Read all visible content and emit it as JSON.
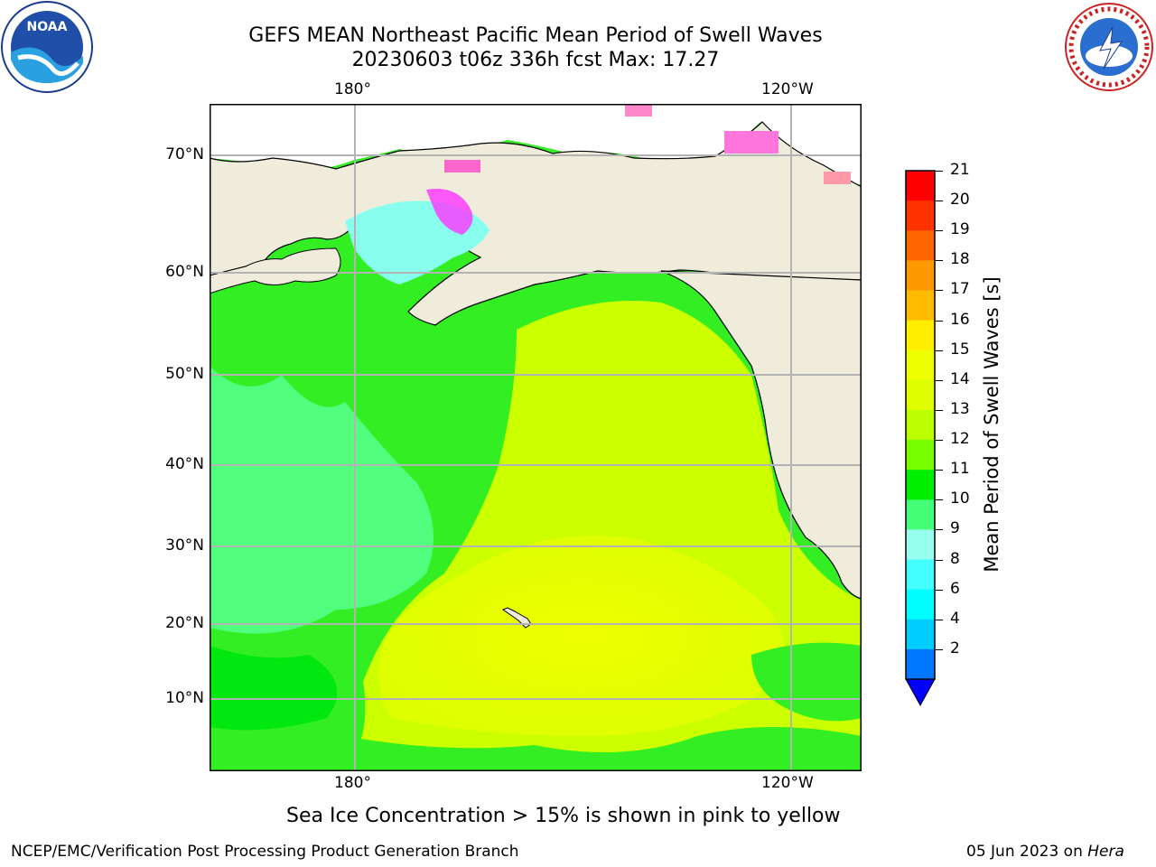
{
  "header": {
    "title_line1": "GEFS MEAN Northeast Pacific Mean Period of Swell Waves",
    "title_line2": "20230603 t06z 336h fcst   Max: 17.27"
  },
  "logos": {
    "left": "NOAA",
    "right": "NATIONAL WEATHER SERVICE"
  },
  "map": {
    "lon_labels": [
      "180°",
      "120°W"
    ],
    "lat_labels": [
      "70°N",
      "60°N",
      "50°N",
      "40°N",
      "30°N",
      "20°N",
      "10°N"
    ],
    "colors": {
      "land": "#efecdc",
      "coast": "#000000",
      "grid": "#b3b3b3"
    }
  },
  "colorbar": {
    "label": "Mean Period of Swell Waves [s]",
    "ticks": [
      "21",
      "20",
      "19",
      "18",
      "17",
      "16",
      "15",
      "14",
      "13",
      "12",
      "11",
      "10",
      "9",
      "8",
      "6",
      "4",
      "2"
    ],
    "colors": [
      "#ff0000",
      "#ff3300",
      "#ff6600",
      "#ff9900",
      "#ffbb00",
      "#ffee00",
      "#eeff00",
      "#ddff00",
      "#bbff00",
      "#77ff00",
      "#00ee00",
      "#44ff77",
      "#99ffee",
      "#44ffff",
      "#00ffff",
      "#00ccff",
      "#0077ff"
    ],
    "extend_color": "#0000ff"
  },
  "caption": "Sea Ice Concentration > 15% is shown in pink to yellow",
  "footer": {
    "left": "NCEP/EMC/Verification Post Processing Product Generation Branch",
    "date": "05 Jun 2023 on ",
    "machine": "Hera"
  }
}
